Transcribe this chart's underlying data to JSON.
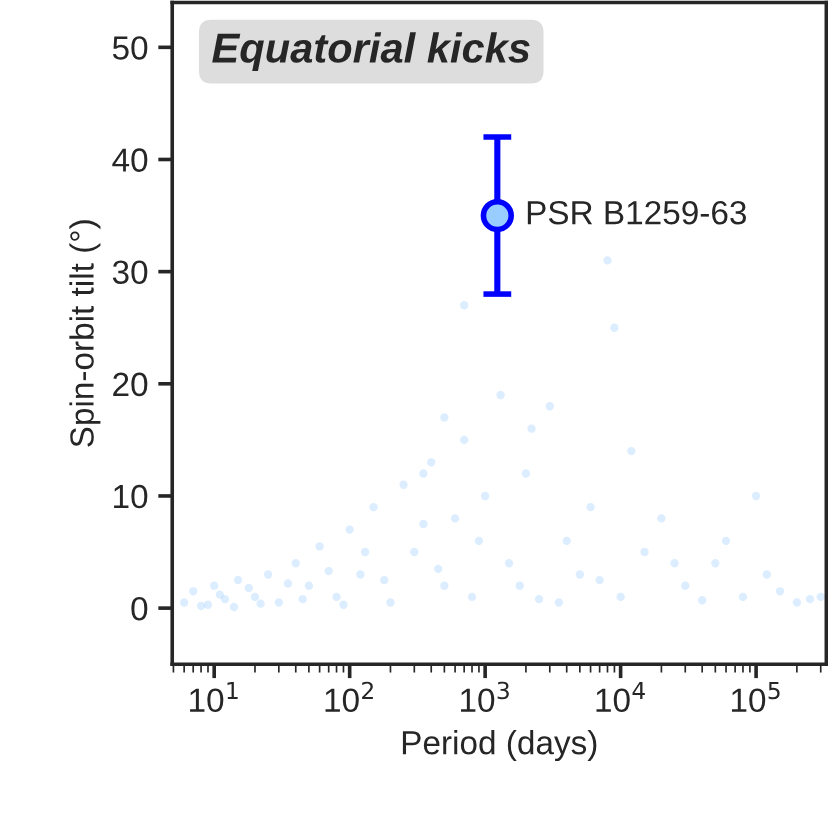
{
  "chart_data": {
    "type": "scatter",
    "title": "Equatorial kicks",
    "xlabel": "Period (days)",
    "ylabel": "Spin-orbit tilt (°)",
    "log": "x",
    "grid": false,
    "legend": false,
    "marker": "circle",
    "xlim": [
      4.9,
      330000
    ],
    "xticks": [
      {
        "value": 10,
        "label": "10$^{1}$"
      },
      {
        "value": 100,
        "label": "10$^{2}$"
      },
      {
        "value": 1000,
        "label": "10$^{3}$"
      },
      {
        "value": 10000,
        "label": "10$^{4}$"
      },
      {
        "value": 100000,
        "label": "10$^{5}$"
      }
    ],
    "ylim": [
      -5,
      54
    ],
    "yticks": [
      0,
      10,
      20,
      30,
      40,
      50
    ],
    "series": [
      {
        "color": "#99ccff",
        "x": [
          6,
          7,
          8,
          9,
          10,
          11,
          12,
          14,
          15,
          18,
          20,
          22,
          25,
          30,
          35,
          40,
          45,
          50,
          60,
          70,
          80,
          90,
          100,
          120,
          130,
          150,
          180,
          200,
          250,
          300,
          350,
          350,
          400,
          450,
          500,
          500,
          600,
          700,
          700,
          800,
          900,
          1000,
          1300,
          1500,
          1800,
          2000,
          2200,
          2500,
          3000,
          3500,
          4000,
          5000,
          6000,
          7000,
          8000,
          9000,
          10000,
          12000,
          15000,
          20000,
          25000,
          30000,
          40000,
          50000,
          60000,
          80000,
          100000,
          120000,
          150000,
          200000,
          250000,
          300000
        ],
        "values": [
          0.5,
          1.5,
          0.2,
          0.3,
          2,
          1.2,
          0.8,
          0.1,
          2.5,
          1.8,
          1,
          0.4,
          3,
          0.5,
          2.2,
          4,
          0.8,
          2,
          5.5,
          3.3,
          1,
          0.3,
          7,
          3,
          5,
          9,
          2.5,
          0.5,
          11,
          5,
          7.5,
          12,
          13,
          3.5,
          2,
          17,
          8,
          15,
          27,
          1,
          6,
          10,
          19,
          4,
          2,
          12,
          16,
          0.8,
          18,
          0.5,
          6,
          3,
          9,
          2.5,
          31,
          25,
          1,
          14,
          5,
          8,
          4,
          2,
          0.7,
          4,
          6,
          1,
          10,
          3,
          1.5,
          0.5,
          0.8,
          1
        ]
      },
      {
        "name": "PSR B1259-63",
        "color": "#0000ff",
        "x": [
          1230
        ],
        "values": [
          35
        ],
        "errors": [
          [
            28,
            42
          ]
        ]
      }
    ]
  }
}
